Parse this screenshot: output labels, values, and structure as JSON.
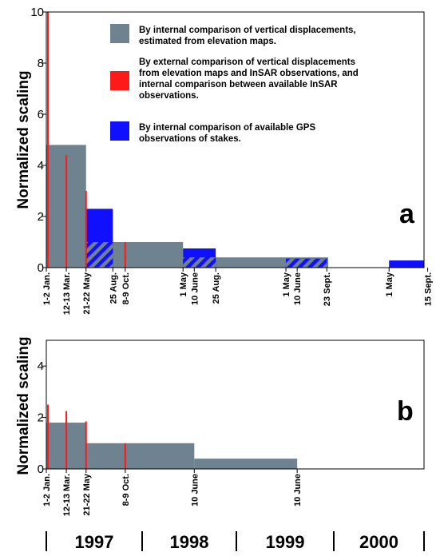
{
  "colors": {
    "elevation": "#6e8290",
    "insar": "#ff1a1a",
    "gps": "#1010ff",
    "hatch": "#6e8290"
  },
  "legend": [
    {
      "key": "elevation",
      "lines": [
        "By internal comparison of vertical displacements,",
        "estimated from elevation maps."
      ]
    },
    {
      "key": "insar",
      "lines": [
        "By external comparison of vertical displacements",
        "from elevation maps and InSAR observations, and",
        "internal comparison between available InSAR",
        "observations."
      ]
    },
    {
      "key": "gps",
      "lines": [
        "By internal comparison of available GPS",
        "observations of stakes."
      ]
    }
  ],
  "years": [
    "1997",
    "1998",
    "1999",
    "2000"
  ],
  "chart_data": [
    {
      "type": "bar",
      "panel": "a",
      "ylabel": "Normalized scaling",
      "ylim": [
        0,
        10
      ],
      "yticks": [
        0,
        2,
        4,
        6,
        8,
        10
      ],
      "xlim_days": [
        0,
        1340
      ],
      "xticks": [
        {
          "label": "1-2 Jan.",
          "day": 0
        },
        {
          "label": "12-13 Mar.",
          "day": 71
        },
        {
          "label": "21-22 May",
          "day": 141
        },
        {
          "label": "25 Aug.",
          "day": 236
        },
        {
          "label": "8-9 Oct.",
          "day": 280
        },
        {
          "label": "1 May",
          "day": 485
        },
        {
          "label": "10 June",
          "day": 525
        },
        {
          "label": "25 Aug.",
          "day": 601
        },
        {
          "label": "1 May",
          "day": 850
        },
        {
          "label": "10 June",
          "day": 890
        },
        {
          "label": "23 Sept.",
          "day": 995
        },
        {
          "label": "1 May",
          "day": 1216
        },
        {
          "label": "15 Sept.",
          "day": 1353
        }
      ],
      "elevation_bars": [
        {
          "start": 0,
          "end": 141,
          "value": 4.8
        },
        {
          "start": 141,
          "end": 485,
          "value": 1.0
        },
        {
          "start": 485,
          "end": 1000,
          "value": 0.4
        }
      ],
      "gps_bars": [
        {
          "start": 141,
          "end": 236,
          "value": 2.3
        },
        {
          "start": 485,
          "end": 601,
          "value": 0.75
        },
        {
          "start": 850,
          "end": 995,
          "value": 0.35
        },
        {
          "start": 1216,
          "end": 1340,
          "value": 0.28
        }
      ],
      "insar_lines": [
        {
          "day": 0,
          "value": 10
        },
        {
          "day": 71,
          "value": 4.4
        },
        {
          "day": 141,
          "value": 3.0
        },
        {
          "day": 280,
          "value": 1.0
        }
      ]
    },
    {
      "type": "bar",
      "panel": "b",
      "ylabel": "Normalized scaling",
      "ylim": [
        0,
        5
      ],
      "yticks": [
        0,
        2,
        4
      ],
      "xlim_days": [
        0,
        1340
      ],
      "xticks": [
        {
          "label": "1-2 Jan.",
          "day": 0
        },
        {
          "label": "12-13 Mar.",
          "day": 71
        },
        {
          "label": "21-22 May",
          "day": 141
        },
        {
          "label": "8-9 Oct.",
          "day": 280
        },
        {
          "label": "10 June",
          "day": 525
        },
        {
          "label": "10 June",
          "day": 890
        }
      ],
      "elevation_bars": [
        {
          "start": 0,
          "end": 141,
          "value": 1.8
        },
        {
          "start": 141,
          "end": 525,
          "value": 1.0
        },
        {
          "start": 525,
          "end": 890,
          "value": 0.4
        }
      ],
      "insar_lines": [
        {
          "day": 0,
          "value": 2.5
        },
        {
          "day": 71,
          "value": 2.25
        },
        {
          "day": 141,
          "value": 1.85
        },
        {
          "day": 280,
          "value": 1.0
        }
      ]
    }
  ]
}
